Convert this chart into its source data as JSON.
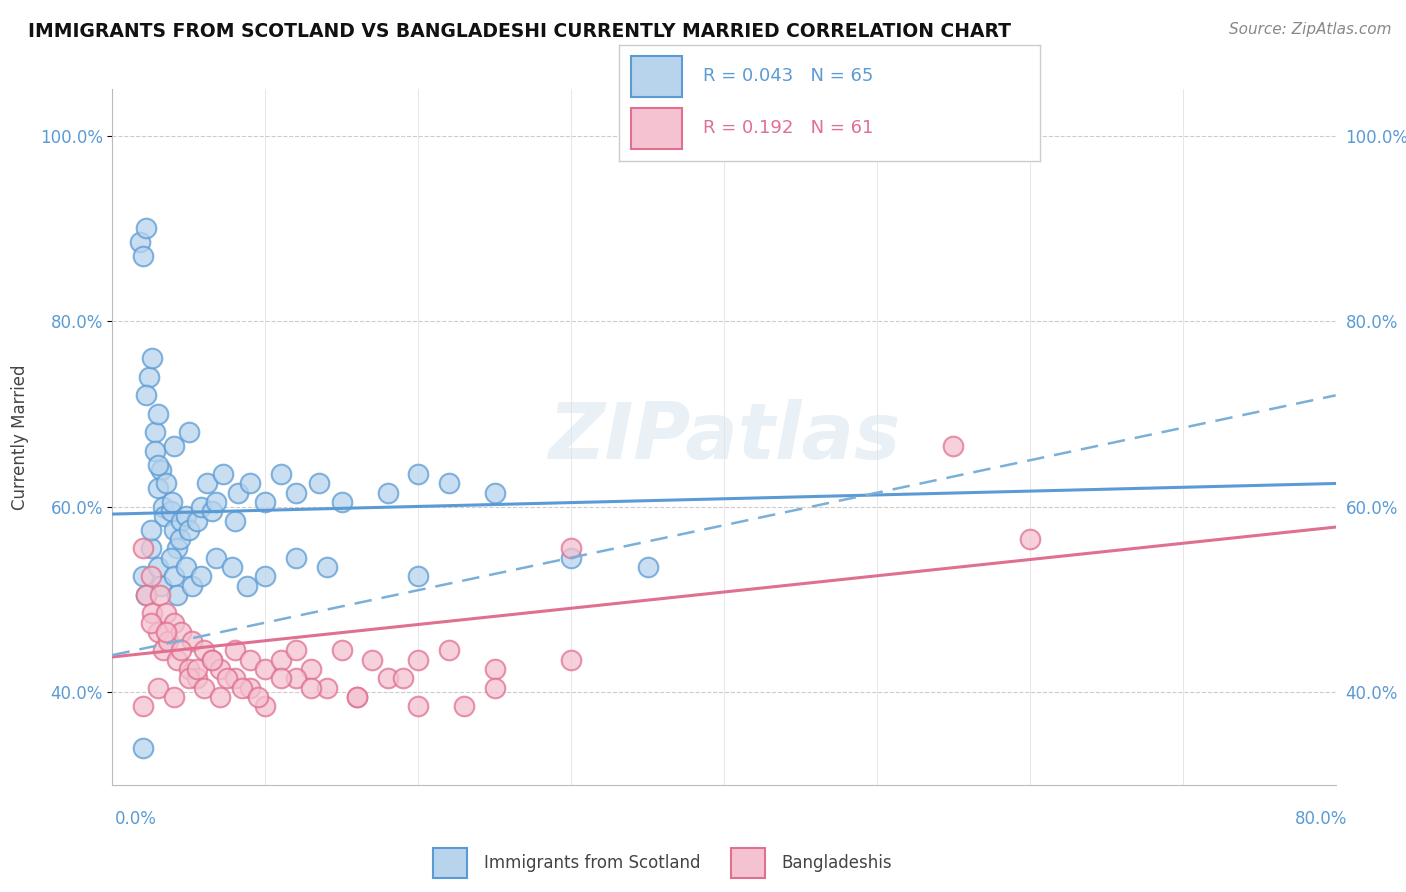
{
  "title": "IMMIGRANTS FROM SCOTLAND VS BANGLADESHI CURRENTLY MARRIED CORRELATION CHART",
  "source_text": "Source: ZipAtlas.com",
  "ylabel": "Currently Married",
  "legend_label_1": "Immigrants from Scotland",
  "legend_label_2": "Bangladeshis",
  "legend_r1": "0.043",
  "legend_n1": "65",
  "legend_r2": "0.192",
  "legend_n2": "61",
  "watermark": "ZIPatlas",
  "xlim": [
    0.0,
    0.8
  ],
  "ylim": [
    0.3,
    1.05
  ],
  "yticks": [
    0.4,
    0.6,
    0.8,
    1.0
  ],
  "ytick_labels": [
    "40.0%",
    "60.0%",
    "80.0%",
    "100.0%"
  ],
  "xtick_labels": [
    "0.0%",
    "80.0%"
  ],
  "color_blue_fill": "#b8d4ed",
  "color_blue_edge": "#5b9bd5",
  "color_blue_line": "#5b9bd5",
  "color_pink_fill": "#f4c2d0",
  "color_pink_edge": "#e07090",
  "color_pink_line": "#e07090",
  "color_dashed_line": "#7ab0d8",
  "scotland_x": [
    0.018,
    0.022,
    0.02,
    0.024,
    0.026,
    0.022,
    0.028,
    0.03,
    0.028,
    0.032,
    0.03,
    0.033,
    0.035,
    0.034,
    0.038,
    0.04,
    0.039,
    0.042,
    0.045,
    0.044,
    0.048,
    0.05,
    0.055,
    0.058,
    0.062,
    0.065,
    0.068,
    0.072,
    0.08,
    0.082,
    0.09,
    0.1,
    0.11,
    0.12,
    0.135,
    0.15,
    0.18,
    0.2,
    0.22,
    0.25,
    0.02,
    0.022,
    0.025,
    0.03,
    0.032,
    0.038,
    0.04,
    0.042,
    0.048,
    0.052,
    0.058,
    0.068,
    0.078,
    0.088,
    0.1,
    0.12,
    0.14,
    0.2,
    0.3,
    0.35,
    0.02,
    0.025,
    0.03,
    0.04,
    0.05
  ],
  "scotland_y": [
    0.885,
    0.9,
    0.87,
    0.74,
    0.76,
    0.72,
    0.68,
    0.7,
    0.66,
    0.64,
    0.62,
    0.6,
    0.625,
    0.59,
    0.595,
    0.575,
    0.605,
    0.555,
    0.585,
    0.565,
    0.59,
    0.575,
    0.585,
    0.6,
    0.625,
    0.595,
    0.605,
    0.635,
    0.585,
    0.615,
    0.625,
    0.605,
    0.635,
    0.615,
    0.625,
    0.605,
    0.615,
    0.635,
    0.625,
    0.615,
    0.525,
    0.505,
    0.555,
    0.535,
    0.515,
    0.545,
    0.525,
    0.505,
    0.535,
    0.515,
    0.525,
    0.545,
    0.535,
    0.515,
    0.525,
    0.545,
    0.535,
    0.525,
    0.545,
    0.535,
    0.34,
    0.575,
    0.645,
    0.665,
    0.68
  ],
  "bangladesh_x": [
    0.02,
    0.022,
    0.025,
    0.026,
    0.03,
    0.031,
    0.033,
    0.035,
    0.036,
    0.04,
    0.042,
    0.045,
    0.05,
    0.052,
    0.055,
    0.06,
    0.065,
    0.07,
    0.08,
    0.09,
    0.1,
    0.11,
    0.12,
    0.13,
    0.15,
    0.17,
    0.2,
    0.22,
    0.25,
    0.3,
    0.02,
    0.03,
    0.04,
    0.05,
    0.06,
    0.07,
    0.08,
    0.09,
    0.1,
    0.12,
    0.14,
    0.16,
    0.18,
    0.2,
    0.25,
    0.3,
    0.55,
    0.6,
    0.025,
    0.035,
    0.045,
    0.055,
    0.065,
    0.075,
    0.085,
    0.095,
    0.11,
    0.13,
    0.16,
    0.19,
    0.23
  ],
  "bangladesh_y": [
    0.555,
    0.505,
    0.525,
    0.485,
    0.465,
    0.505,
    0.445,
    0.485,
    0.455,
    0.475,
    0.435,
    0.465,
    0.425,
    0.455,
    0.415,
    0.445,
    0.435,
    0.425,
    0.445,
    0.435,
    0.425,
    0.435,
    0.445,
    0.425,
    0.445,
    0.435,
    0.435,
    0.445,
    0.425,
    0.435,
    0.385,
    0.405,
    0.395,
    0.415,
    0.405,
    0.395,
    0.415,
    0.405,
    0.385,
    0.415,
    0.405,
    0.395,
    0.415,
    0.385,
    0.405,
    0.555,
    0.665,
    0.565,
    0.475,
    0.465,
    0.445,
    0.425,
    0.435,
    0.415,
    0.405,
    0.395,
    0.415,
    0.405,
    0.395,
    0.415,
    0.385
  ],
  "scotland_trend_x": [
    0.0,
    0.8
  ],
  "scotland_trend_y": [
    0.592,
    0.625
  ],
  "bangladesh_trend_x": [
    0.0,
    0.8
  ],
  "bangladesh_trend_y": [
    0.438,
    0.578
  ],
  "dashed_trend_x": [
    0.0,
    0.8
  ],
  "dashed_trend_y": [
    0.44,
    0.72
  ]
}
